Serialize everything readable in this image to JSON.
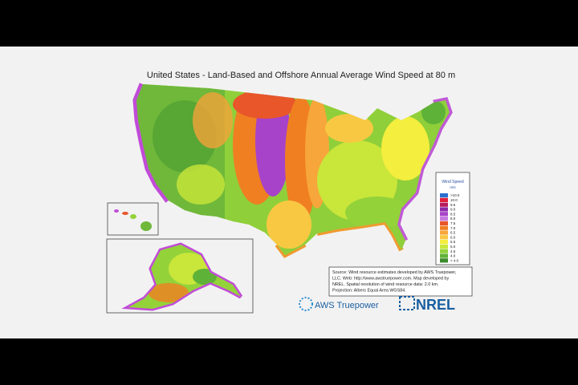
{
  "title": "United States - Land-Based and Offshore Annual Average Wind Speed at 80 m",
  "legend": {
    "title": "Wind Speed",
    "unit": "m/s",
    "entries": [
      {
        "label": ">10.0",
        "color": "#2a6fcf"
      },
      {
        "label": "10.0",
        "color": "#e0203a"
      },
      {
        "label": "9.5",
        "color": "#b81c5c"
      },
      {
        "label": "9.0",
        "color": "#8e2aa8"
      },
      {
        "label": "8.5",
        "color": "#a743c9"
      },
      {
        "label": "8.0",
        "color": "#c77be0"
      },
      {
        "label": "7.5",
        "color": "#e8562a"
      },
      {
        "label": "7.0",
        "color": "#f07f22"
      },
      {
        "label": "6.5",
        "color": "#f6a63a"
      },
      {
        "label": "6.0",
        "color": "#f9c842"
      },
      {
        "label": "5.5",
        "color": "#f4ee3e"
      },
      {
        "label": "5.0",
        "color": "#c9e63a"
      },
      {
        "label": "4.5",
        "color": "#94d23a"
      },
      {
        "label": "4.0",
        "color": "#5fb238"
      },
      {
        "label": "< 4.0",
        "color": "#3c8a2e"
      }
    ]
  },
  "source": [
    "Source: Wind resource estimates developed by AWS Truepower,",
    "LLC.  Web: http://www.awstruepower.com.  Map developed by",
    "NREL.  Spatial resolution of wind resource data: 2.0 km.",
    "Projection: Albers Equal Area WGS84."
  ],
  "logos": [
    "AWS Truepower",
    "NREL"
  ]
}
